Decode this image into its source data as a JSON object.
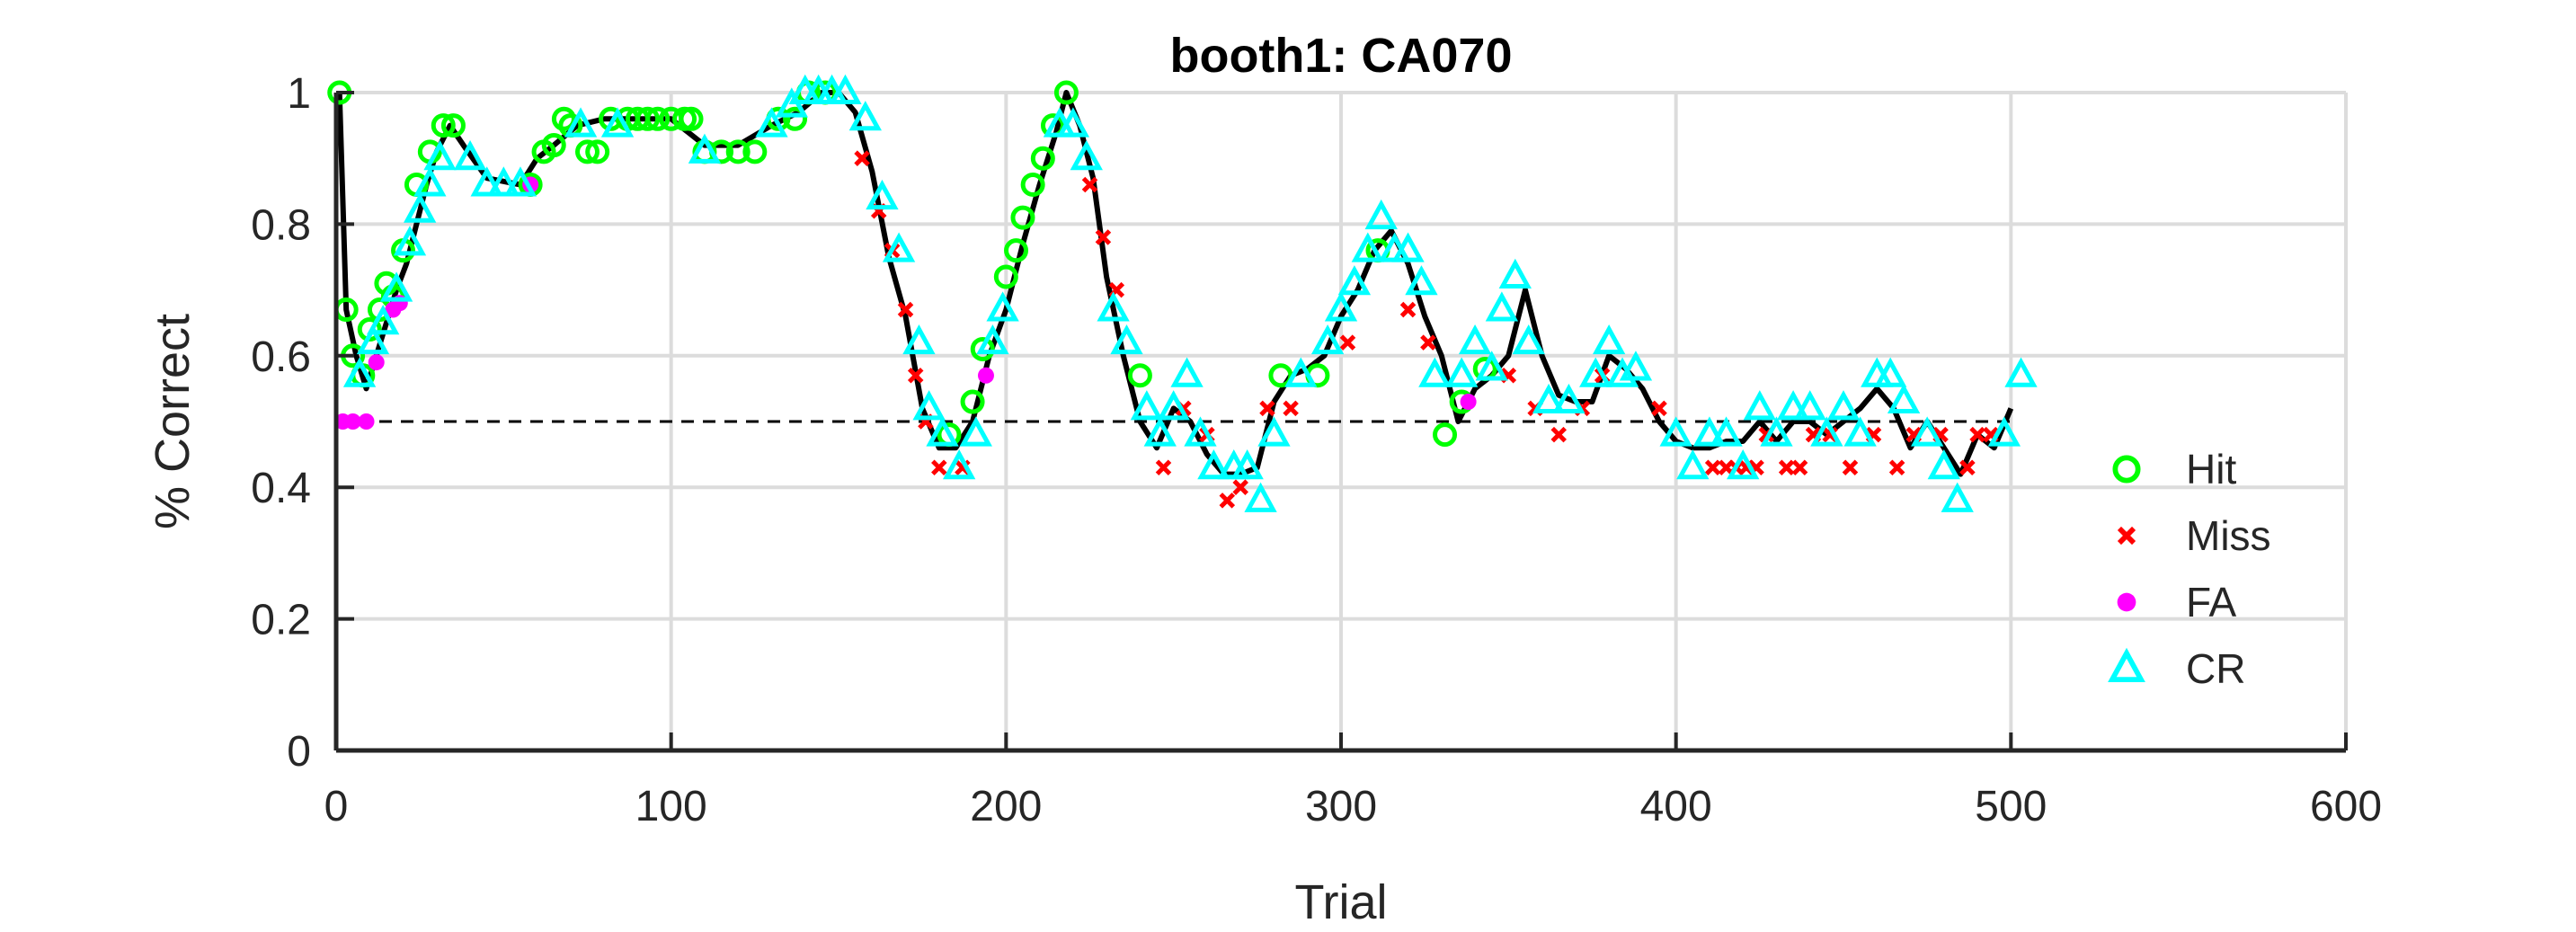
{
  "chart_data": {
    "type": "scatter",
    "title": "booth1: CA070",
    "xlabel": "Trial",
    "ylabel": "% Correct",
    "xlim": [
      0,
      600
    ],
    "ylim": [
      0,
      1
    ],
    "xticks": [
      0,
      100,
      200,
      300,
      400,
      500,
      600
    ],
    "yticks": [
      0,
      0.2,
      0.4,
      0.6,
      0.8,
      1
    ],
    "xtick_labels": [
      "0",
      "100",
      "200",
      "300",
      "400",
      "500",
      "600"
    ],
    "ytick_labels": [
      "0",
      "0.2",
      "0.4",
      "0.6",
      "0.8",
      "1"
    ],
    "grid": true,
    "legend_position": "right",
    "reference_line": {
      "y": 0.5,
      "style": "dashed",
      "color": "#000000"
    },
    "performance_line": {
      "color": "#000000",
      "x": [
        1,
        3,
        6,
        9,
        12,
        15,
        18,
        21,
        24,
        27,
        30,
        34,
        38,
        45,
        55,
        60,
        65,
        72,
        80,
        90,
        100,
        110,
        120,
        130,
        138,
        145,
        150,
        155,
        160,
        165,
        170,
        175,
        180,
        185,
        190,
        195,
        200,
        205,
        210,
        215,
        218,
        222,
        226,
        230,
        235,
        240,
        245,
        250,
        255,
        260,
        265,
        270,
        275,
        280,
        285,
        290,
        295,
        300,
        305,
        310,
        315,
        320,
        325,
        330,
        335,
        340,
        345,
        350,
        355,
        360,
        365,
        370,
        375,
        380,
        385,
        390,
        395,
        400,
        405,
        410,
        415,
        420,
        425,
        430,
        435,
        440,
        445,
        450,
        455,
        460,
        465,
        470,
        475,
        480,
        485,
        490,
        495,
        500
      ],
      "y": [
        1.0,
        0.67,
        0.6,
        0.55,
        0.6,
        0.65,
        0.7,
        0.74,
        0.8,
        0.86,
        0.91,
        0.95,
        0.92,
        0.87,
        0.86,
        0.9,
        0.92,
        0.95,
        0.96,
        0.96,
        0.96,
        0.92,
        0.92,
        0.95,
        0.97,
        1.0,
        1.0,
        0.97,
        0.88,
        0.75,
        0.66,
        0.52,
        0.46,
        0.46,
        0.5,
        0.6,
        0.67,
        0.77,
        0.86,
        0.94,
        1.0,
        0.95,
        0.87,
        0.72,
        0.6,
        0.5,
        0.46,
        0.52,
        0.5,
        0.45,
        0.42,
        0.42,
        0.43,
        0.53,
        0.57,
        0.58,
        0.6,
        0.66,
        0.7,
        0.76,
        0.79,
        0.74,
        0.66,
        0.6,
        0.5,
        0.55,
        0.57,
        0.6,
        0.7,
        0.6,
        0.54,
        0.53,
        0.53,
        0.6,
        0.58,
        0.55,
        0.5,
        0.47,
        0.46,
        0.46,
        0.47,
        0.47,
        0.5,
        0.47,
        0.5,
        0.5,
        0.48,
        0.5,
        0.52,
        0.55,
        0.52,
        0.46,
        0.5,
        0.46,
        0.42,
        0.48,
        0.46,
        0.52
      ]
    },
    "series": [
      {
        "name": "Hit",
        "marker": "circle",
        "color": "#00ff00",
        "x": [
          1,
          3,
          5,
          8,
          10,
          13,
          15,
          17,
          20,
          24,
          28,
          32,
          35,
          58,
          62,
          65,
          68,
          70,
          75,
          78,
          82,
          87,
          90,
          93,
          96,
          100,
          104,
          106,
          110,
          115,
          120,
          125,
          132,
          137,
          141,
          146,
          183,
          190,
          193,
          200,
          203,
          205,
          208,
          211,
          214,
          218,
          240,
          282,
          293,
          311,
          331,
          336,
          343
        ],
        "y": [
          1.0,
          0.67,
          0.6,
          0.57,
          0.64,
          0.67,
          0.71,
          0.69,
          0.76,
          0.86,
          0.91,
          0.95,
          0.95,
          0.86,
          0.91,
          0.92,
          0.96,
          0.95,
          0.91,
          0.91,
          0.96,
          0.96,
          0.96,
          0.96,
          0.96,
          0.96,
          0.96,
          0.96,
          0.91,
          0.91,
          0.91,
          0.91,
          0.96,
          0.96,
          1.0,
          1.0,
          0.48,
          0.53,
          0.61,
          0.72,
          0.76,
          0.81,
          0.86,
          0.9,
          0.95,
          1.0,
          0.57,
          0.57,
          0.57,
          0.76,
          0.48,
          0.53,
          0.58
        ]
      },
      {
        "name": "Miss",
        "marker": "x",
        "color": "#ff0000",
        "x": [
          157,
          162,
          166,
          170,
          173,
          176,
          180,
          187,
          225,
          229,
          233,
          247,
          253,
          260,
          266,
          270,
          278,
          285,
          302,
          320,
          326,
          350,
          358,
          365,
          372,
          378,
          395,
          411,
          415,
          418,
          421,
          424,
          427,
          433,
          437,
          441,
          446,
          452,
          459,
          466,
          471,
          479,
          487,
          490,
          494
        ],
        "y": [
          0.9,
          0.82,
          0.76,
          0.67,
          0.57,
          0.5,
          0.43,
          0.43,
          0.86,
          0.78,
          0.7,
          0.43,
          0.52,
          0.48,
          0.38,
          0.4,
          0.52,
          0.52,
          0.62,
          0.67,
          0.62,
          0.57,
          0.52,
          0.48,
          0.52,
          0.57,
          0.52,
          0.43,
          0.43,
          0.43,
          0.43,
          0.43,
          0.48,
          0.43,
          0.43,
          0.48,
          0.48,
          0.43,
          0.48,
          0.43,
          0.48,
          0.48,
          0.43,
          0.48,
          0.48
        ]
      },
      {
        "name": "FA",
        "marker": "filled-circle",
        "color": "#ff00ff",
        "x": [
          2,
          5,
          9,
          12,
          17,
          19,
          58,
          194,
          338
        ],
        "y": [
          0.5,
          0.5,
          0.5,
          0.59,
          0.67,
          0.68,
          0.86,
          0.57,
          0.53
        ]
      },
      {
        "name": "CR",
        "marker": "triangle",
        "color": "#00ffff",
        "x": [
          7,
          11,
          14,
          18,
          22,
          25,
          28,
          31,
          40,
          45,
          50,
          55,
          73,
          84,
          110,
          130,
          136,
          140,
          144,
          148,
          152,
          158,
          163,
          168,
          174,
          177,
          181,
          186,
          191,
          196,
          199,
          216,
          220,
          224,
          232,
          236,
          242,
          246,
          250,
          254,
          258,
          262,
          268,
          272,
          276,
          280,
          288,
          296,
          300,
          304,
          308,
          312,
          316,
          320,
          324,
          328,
          336,
          340,
          345,
          348,
          352,
          356,
          362,
          368,
          376,
          380,
          384,
          388,
          400,
          405,
          410,
          415,
          420,
          425,
          430,
          435,
          440,
          445,
          450,
          455,
          460,
          464,
          468,
          475,
          480,
          484,
          498,
          503
        ],
        "y": [
          0.57,
          0.62,
          0.65,
          0.7,
          0.77,
          0.82,
          0.86,
          0.9,
          0.9,
          0.86,
          0.86,
          0.86,
          0.95,
          0.95,
          0.91,
          0.95,
          0.98,
          1.0,
          1.0,
          1.0,
          1.0,
          0.96,
          0.84,
          0.76,
          0.62,
          0.52,
          0.48,
          0.43,
          0.48,
          0.62,
          0.67,
          0.95,
          0.95,
          0.9,
          0.67,
          0.62,
          0.52,
          0.48,
          0.52,
          0.57,
          0.48,
          0.43,
          0.43,
          0.43,
          0.38,
          0.48,
          0.57,
          0.62,
          0.67,
          0.71,
          0.76,
          0.81,
          0.76,
          0.76,
          0.71,
          0.57,
          0.57,
          0.62,
          0.58,
          0.67,
          0.72,
          0.62,
          0.53,
          0.53,
          0.57,
          0.62,
          0.57,
          0.58,
          0.48,
          0.43,
          0.48,
          0.48,
          0.43,
          0.52,
          0.48,
          0.52,
          0.52,
          0.48,
          0.52,
          0.48,
          0.57,
          0.57,
          0.53,
          0.48,
          0.43,
          0.38,
          0.48,
          0.57
        ]
      }
    ]
  }
}
